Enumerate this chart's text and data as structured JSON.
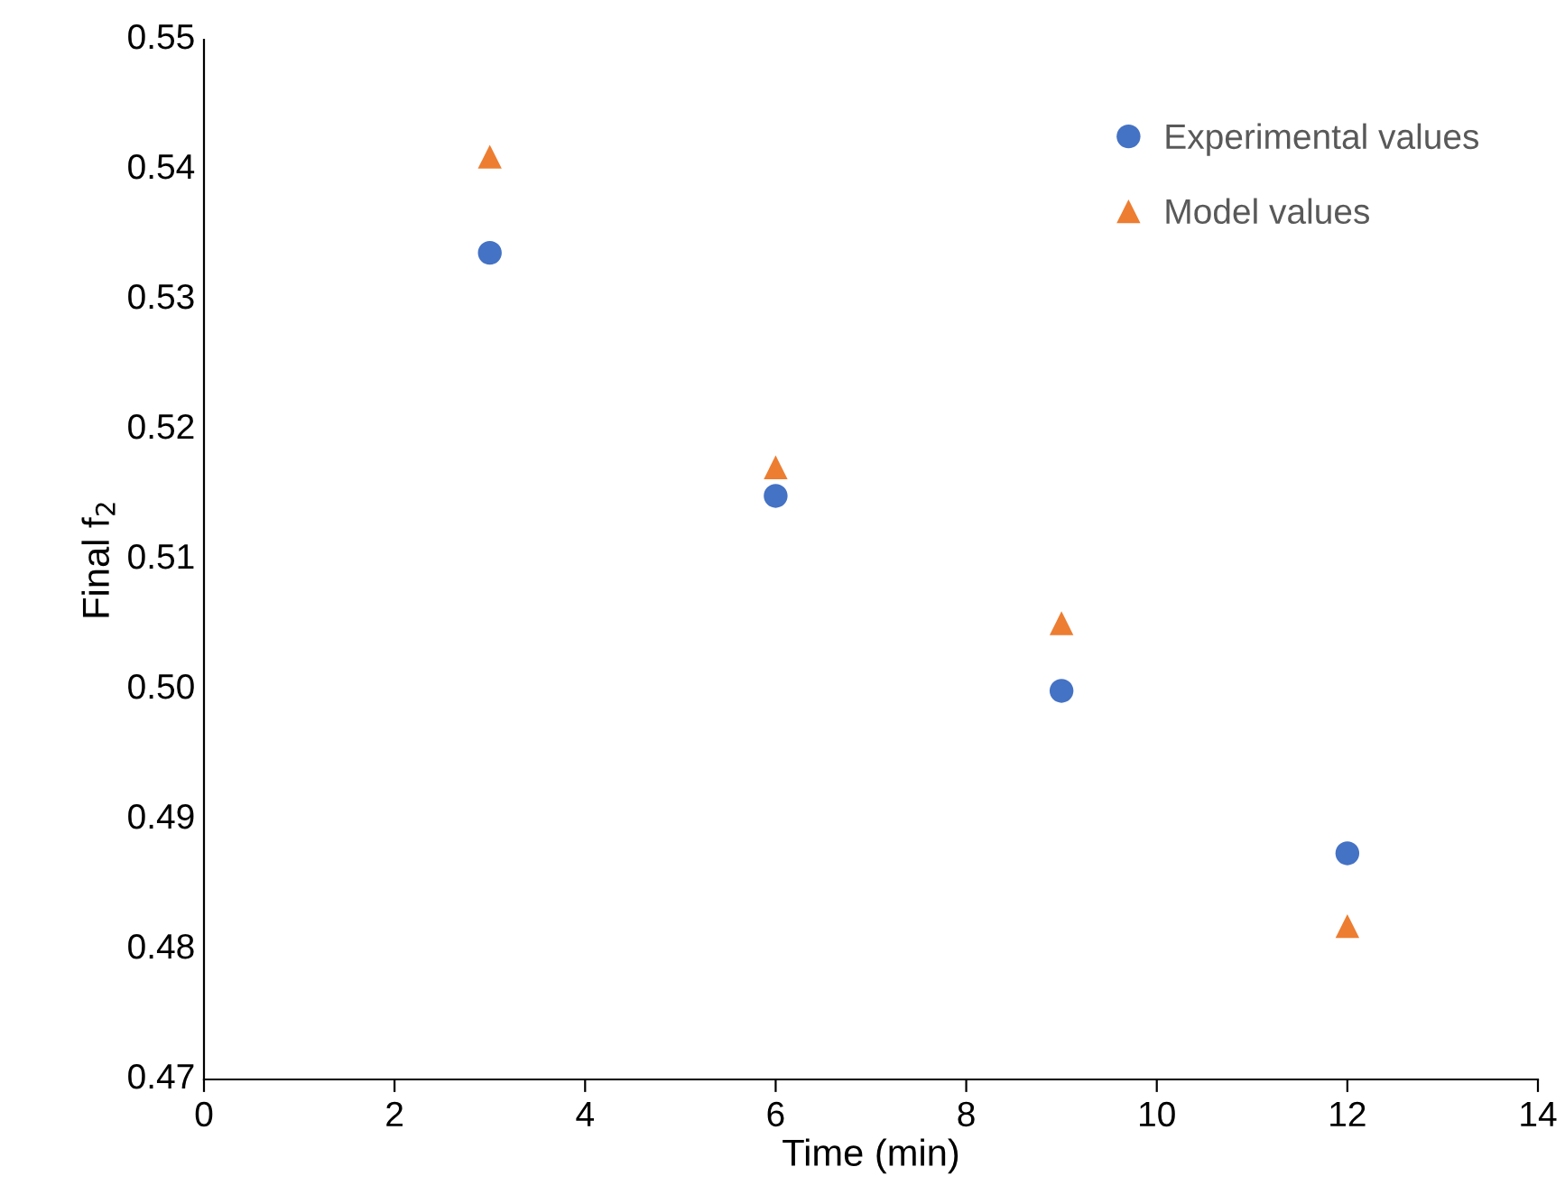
{
  "chart_data": {
    "type": "scatter",
    "xlabel": "Time (min)",
    "ylabel": "Final f$_{2}$",
    "xlim": [
      0,
      14
    ],
    "xticks": [
      0,
      2,
      4,
      6,
      8,
      10,
      12,
      14
    ],
    "ylim": [
      0.47,
      0.55
    ],
    "yticks": [
      {
        "value": 0.47,
        "label": "0.47"
      },
      {
        "value": 0.48,
        "label": "0.48"
      },
      {
        "value": 0.49,
        "label": "0.49"
      },
      {
        "value": 0.5,
        "label": "0.50"
      },
      {
        "value": 0.51,
        "label": "0.51"
      },
      {
        "value": 0.52,
        "label": "0.52"
      },
      {
        "value": 0.53,
        "label": "0.53"
      },
      {
        "value": 0.54,
        "label": "0.54"
      },
      {
        "value": 0.55,
        "label": "0.55"
      }
    ],
    "grid": false,
    "legend": "top right",
    "series": [
      {
        "name": "Experimental values",
        "color": "#4472c4",
        "marker": "circle",
        "x": [
          3,
          6,
          9,
          12
        ],
        "values": [
          0.5336,
          0.5149,
          0.4999,
          0.4874
        ]
      },
      {
        "name": "Model values",
        "color": "#ed7d31",
        "marker": "triangle",
        "x": [
          3,
          6,
          9,
          12
        ],
        "values": [
          0.541,
          0.5171,
          0.5051,
          0.4818
        ]
      }
    ]
  }
}
